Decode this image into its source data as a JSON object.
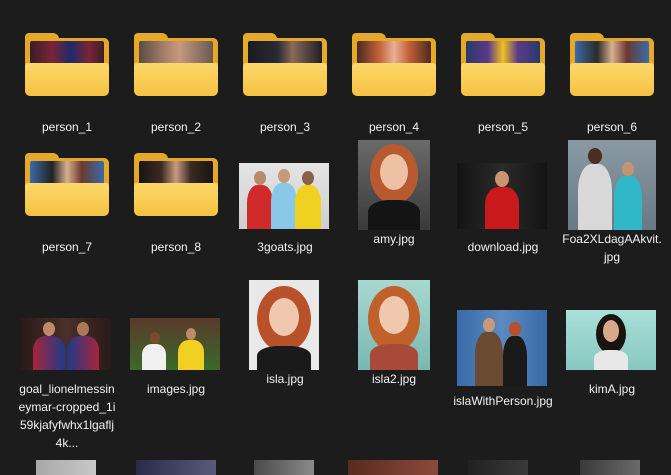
{
  "items": [
    {
      "label": "person_1",
      "kind": "folder",
      "icon": "folder-icon"
    },
    {
      "label": "person_2",
      "kind": "folder",
      "icon": "folder-icon"
    },
    {
      "label": "person_3",
      "kind": "folder",
      "icon": "folder-icon"
    },
    {
      "label": "person_4",
      "kind": "folder",
      "icon": "folder-icon"
    },
    {
      "label": "person_5",
      "kind": "folder",
      "icon": "folder-icon"
    },
    {
      "label": "person_6",
      "kind": "folder",
      "icon": "folder-icon"
    },
    {
      "label": "person_7",
      "kind": "folder",
      "icon": "folder-icon"
    },
    {
      "label": "person_8",
      "kind": "folder",
      "icon": "folder-icon"
    },
    {
      "label": "3goats.jpg",
      "kind": "image",
      "icon": "image-thumbnail"
    },
    {
      "label": "amy.jpg",
      "kind": "image",
      "icon": "image-thumbnail"
    },
    {
      "label": "download.jpg",
      "kind": "image",
      "icon": "image-thumbnail"
    },
    {
      "label": "Foa2XLdagAAkvit.jpg",
      "kind": "image",
      "icon": "image-thumbnail"
    },
    {
      "label": "goal_lionelmessineymar-cropped_1i59kjafyfwhx1lgaflj4k...",
      "kind": "image",
      "icon": "image-thumbnail"
    },
    {
      "label": "images.jpg",
      "kind": "image",
      "icon": "image-thumbnail"
    },
    {
      "label": "isla.jpg",
      "kind": "image",
      "icon": "image-thumbnail"
    },
    {
      "label": "isla2.jpg",
      "kind": "image",
      "icon": "image-thumbnail"
    },
    {
      "label": "islaWithPerson.jpg",
      "kind": "image",
      "icon": "image-thumbnail"
    },
    {
      "label": "kimA.jpg",
      "kind": "image",
      "icon": "image-thumbnail"
    }
  ],
  "colors": {
    "background": "#1c1c1c",
    "folder_back": "#e5a92a",
    "folder_front": "#f5c242",
    "text": "#f2f2f2"
  }
}
